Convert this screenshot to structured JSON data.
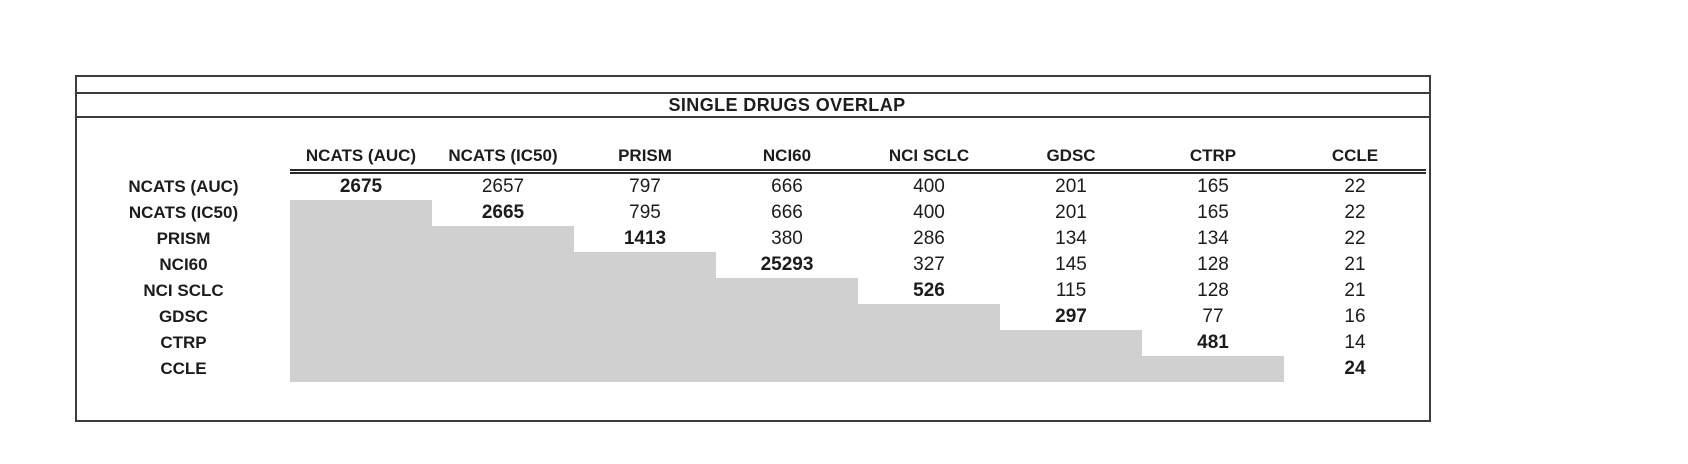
{
  "chart_data": {
    "type": "table",
    "title": "SINGLE DRUGS OVERLAP",
    "columns": [
      "NCATS (AUC)",
      "NCATS (IC50)",
      "PRISM",
      "NCI60",
      "NCI SCLC",
      "GDSC",
      "CTRP",
      "CCLE"
    ],
    "row_labels": [
      "NCATS (AUC)",
      "NCATS (IC50)",
      "PRISM",
      "NCI60",
      "NCI SCLC",
      "GDSC",
      "CTRP",
      "CCLE"
    ],
    "matrix": [
      [
        2675,
        2657,
        797,
        666,
        400,
        201,
        165,
        22
      ],
      [
        null,
        2665,
        795,
        666,
        400,
        201,
        165,
        22
      ],
      [
        null,
        null,
        1413,
        380,
        286,
        134,
        134,
        22
      ],
      [
        null,
        null,
        null,
        25293,
        327,
        145,
        128,
        21
      ],
      [
        null,
        null,
        null,
        null,
        526,
        115,
        128,
        21
      ],
      [
        null,
        null,
        null,
        null,
        null,
        297,
        77,
        16
      ],
      [
        null,
        null,
        null,
        null,
        null,
        null,
        481,
        14
      ],
      [
        null,
        null,
        null,
        null,
        null,
        null,
        null,
        24
      ]
    ],
    "layout_hints": {
      "diagonal_bold": true,
      "lower_triangle_shaded": true,
      "header_rule": "double"
    }
  },
  "colors": {
    "shaded_cell": "#d1d0d0",
    "frame_line": "#3c3c3c",
    "text": "#1c1c1c"
  }
}
